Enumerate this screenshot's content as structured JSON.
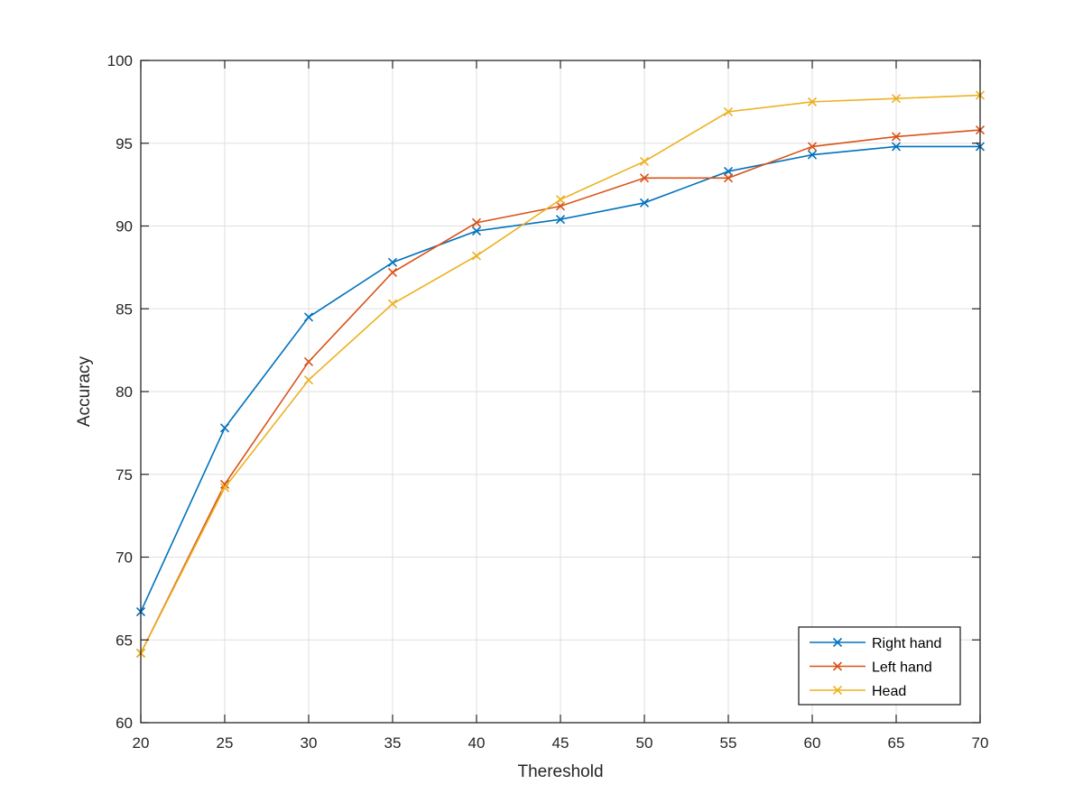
{
  "chart_data": {
    "type": "line",
    "title": "",
    "xlabel": "Thereshold",
    "ylabel": "Accuracy",
    "xlim": [
      20,
      70
    ],
    "ylim": [
      60,
      100
    ],
    "x_ticks": [
      20,
      25,
      30,
      35,
      40,
      45,
      50,
      55,
      60,
      65,
      70
    ],
    "y_ticks": [
      60,
      65,
      70,
      75,
      80,
      85,
      90,
      95,
      100
    ],
    "grid": true,
    "legend_position": "bottom-right",
    "marker": "x",
    "x": [
      20,
      25,
      30,
      35,
      40,
      45,
      50,
      55,
      60,
      65,
      70
    ],
    "series": [
      {
        "name": "Right hand",
        "color": "#0072BD",
        "values": [
          66.7,
          77.8,
          84.5,
          87.8,
          89.7,
          90.4,
          91.4,
          93.3,
          94.3,
          94.8,
          94.8
        ]
      },
      {
        "name": "Left hand",
        "color": "#D95319",
        "values": [
          64.2,
          74.4,
          81.8,
          87.2,
          90.2,
          91.2,
          92.9,
          92.9,
          94.8,
          95.4,
          95.8
        ]
      },
      {
        "name": "Head",
        "color": "#EDB120",
        "values": [
          64.2,
          74.2,
          80.7,
          85.3,
          88.2,
          91.6,
          93.9,
          96.9,
          97.5,
          97.7,
          97.9
        ]
      }
    ]
  }
}
